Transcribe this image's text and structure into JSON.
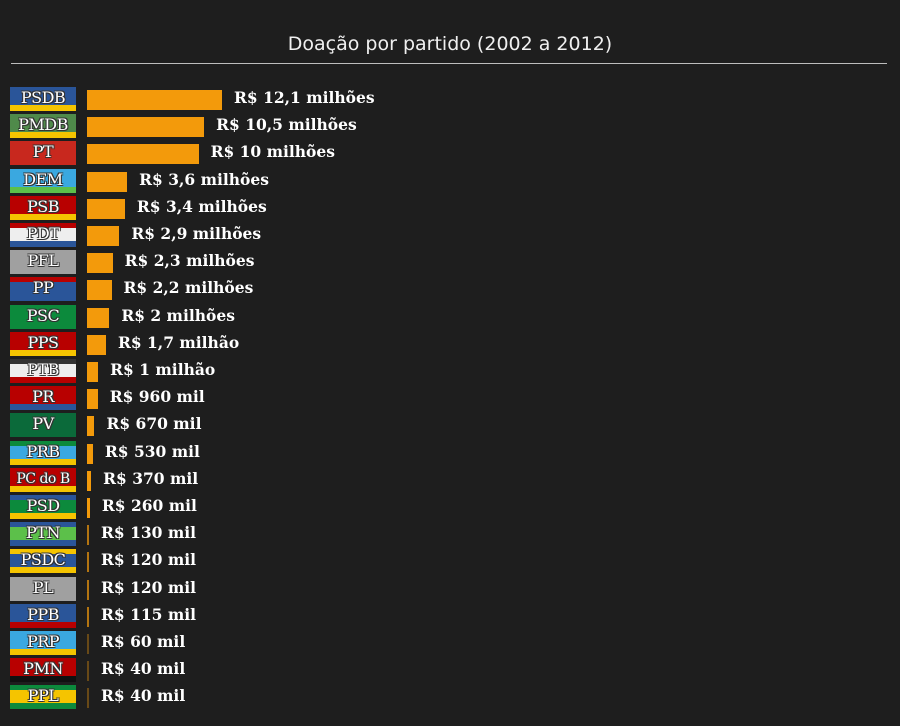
{
  "chart_data": {
    "type": "bar",
    "orientation": "horizontal",
    "title": "Doação por partido (2002 a 2012)",
    "unit": "milhões de R$",
    "bar_color": "#f39a0b",
    "categories": [
      "PSDB",
      "PMDB",
      "PT",
      "DEM",
      "PSB",
      "PDT",
      "PFL",
      "PP",
      "PSC",
      "PPS",
      "PTB",
      "PR",
      "PV",
      "PRB",
      "PC do B",
      "PSD",
      "PTN",
      "PSDC",
      "PL",
      "PPB",
      "PRP",
      "PMN",
      "PPL"
    ],
    "values": [
      12.1,
      10.5,
      10,
      3.6,
      3.4,
      2.9,
      2.3,
      2.2,
      2,
      1.7,
      1,
      0.96,
      0.67,
      0.53,
      0.37,
      0.26,
      0.13,
      0.12,
      0.12,
      0.115,
      0.06,
      0.04,
      0.04
    ],
    "labels": [
      "R$ 12,1 milhões",
      "R$ 10,5 milhões",
      "R$ 10 milhões",
      "R$ 3,6 milhões",
      "R$ 3,4 milhões",
      "R$ 2,9 milhões",
      "R$ 2,3 milhões",
      "R$ 2,2 milhões",
      "R$ 2 milhões",
      "R$ 1,7 milhão",
      "R$ 1 milhão",
      "R$ 960 mil",
      "R$ 670 mil",
      "R$ 530 mil",
      "R$ 370 mil",
      "R$ 260 mil",
      "R$ 130 mil",
      "R$ 120 mil",
      "R$ 120 mil",
      "R$ 115 mil",
      "R$ 60 mil",
      "R$ 40 mil",
      "R$ 40 mil"
    ],
    "badge_colors": [
      {
        "top": null,
        "main": "#2a5599",
        "bottom": "#f5c400"
      },
      {
        "top": null,
        "main": "#4f8a4a",
        "bottom": "#f5c400"
      },
      {
        "top": null,
        "main": "#c8281e",
        "bottom": null
      },
      {
        "top": null,
        "main": "#3aa8e0",
        "bottom": "#5cc04a"
      },
      {
        "top": null,
        "main": "#b80000",
        "bottom": "#f5c400"
      },
      {
        "top": "#b80000",
        "main": "#eeeeee",
        "bottom": "#2a5599"
      },
      {
        "top": null,
        "main": "#a0a0a0",
        "bottom": null
      },
      {
        "top": "#b80000",
        "main": "#2a5599",
        "bottom": null
      },
      {
        "top": null,
        "main": "#0c8a3c",
        "bottom": null
      },
      {
        "top": null,
        "main": "#b80000",
        "bottom": "#f5c400"
      },
      {
        "top": "#333333",
        "main": "#eeeeee",
        "bottom": "#b80000"
      },
      {
        "top": null,
        "main": "#b80000",
        "bottom": "#2a5599"
      },
      {
        "top": null,
        "main": "#0b6a3a",
        "bottom": null
      },
      {
        "top": "#0c8a3c",
        "main": "#3aa8e0",
        "bottom": "#f5c400"
      },
      {
        "top": null,
        "main": "#b80000",
        "bottom": "#f5c400"
      },
      {
        "top": "#2a5599",
        "main": "#0c8a3c",
        "bottom": "#f5c400"
      },
      {
        "top": "#2a5599",
        "main": "#5cc04a",
        "bottom": "#2a5599"
      },
      {
        "top": "#f5c400",
        "main": "#2a5599",
        "bottom": "#f5c400"
      },
      {
        "top": null,
        "main": "#a0a0a0",
        "bottom": null
      },
      {
        "top": null,
        "main": "#2a5599",
        "bottom": "#b80000"
      },
      {
        "top": null,
        "main": "#3aa8e0",
        "bottom": "#f5c400"
      },
      {
        "top": null,
        "main": "#b80000",
        "bottom": "#111111"
      },
      {
        "top": "#0c8a3c",
        "main": "#f5c400",
        "bottom": "#0c8a3c"
      }
    ]
  }
}
